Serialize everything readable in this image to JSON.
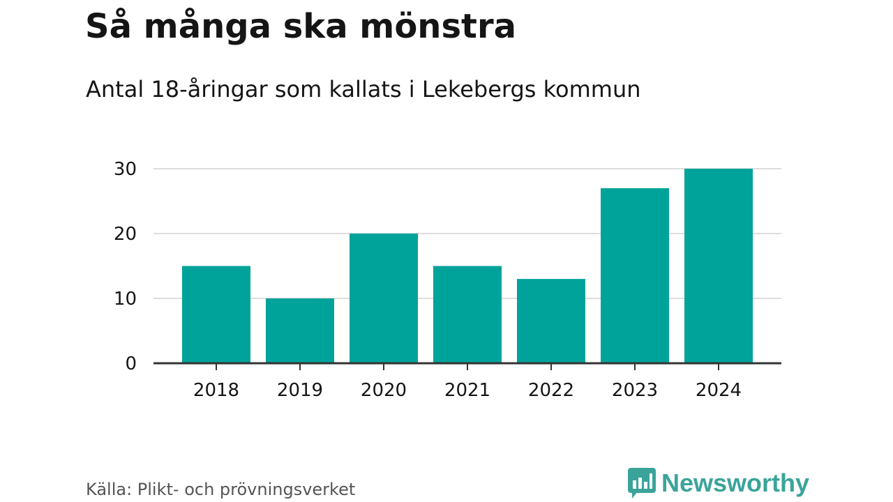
{
  "title": "Så många ska mönstra",
  "subtitle": "Antal 18-åringar som kallats i Lekebergs kommun",
  "source": "Källa: Plikt- och prövningsverket",
  "brand": {
    "name": "Newsworthy",
    "icon": "newsworthy-logo-icon",
    "color": "#3ba49a"
  },
  "colors": {
    "bar": "#00a39a",
    "grid": "#dddddd",
    "axis": "#333333",
    "text": "#151515"
  },
  "chart_data": {
    "type": "bar",
    "categories": [
      "2018",
      "2019",
      "2020",
      "2021",
      "2022",
      "2023",
      "2024"
    ],
    "values": [
      15,
      10,
      20,
      15,
      13,
      27,
      30
    ],
    "ylim": [
      0,
      30
    ],
    "yticks": [
      "0",
      "10",
      "20",
      "30"
    ],
    "grid": true,
    "xlabel": "",
    "ylabel": ""
  }
}
